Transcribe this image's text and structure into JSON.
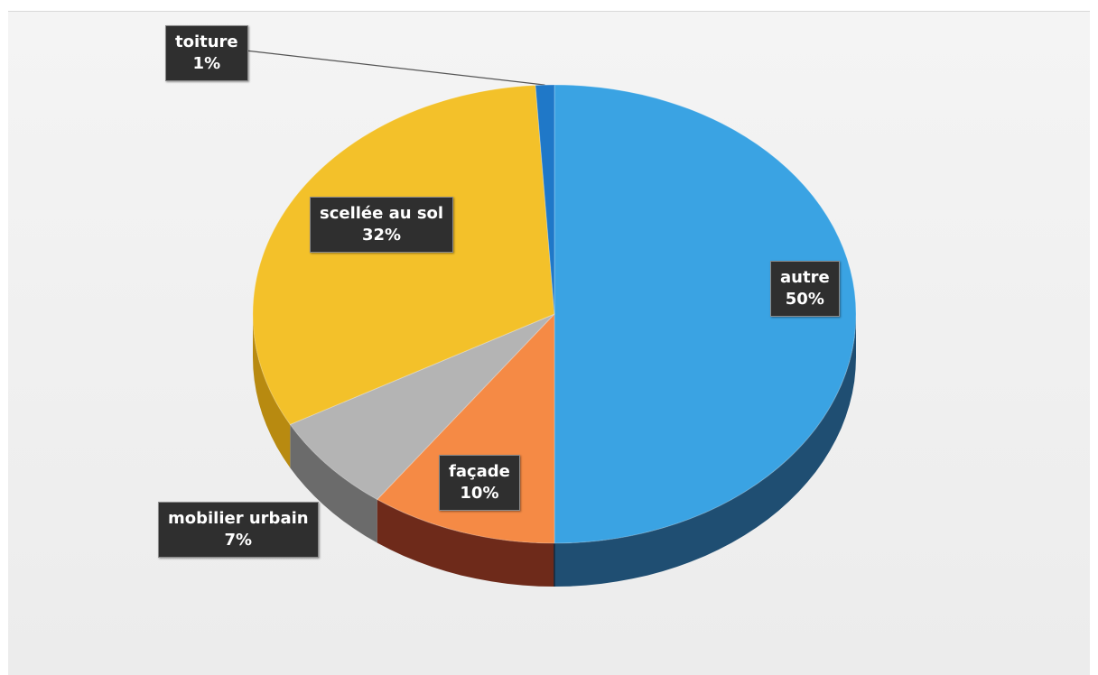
{
  "chart_data": {
    "type": "pie",
    "title": "",
    "slices": [
      {
        "name": "autre",
        "value": 50,
        "label": "50%",
        "color": "#3aa3e3",
        "side_color": "#1f4e72"
      },
      {
        "name": "façade",
        "value": 10,
        "label": "10%",
        "color": "#f58a45",
        "side_color": "#6e2a1a"
      },
      {
        "name": "mobilier urbain",
        "value": 7,
        "label": "7%",
        "color": "#b4b4b4",
        "side_color": "#6b6b6b"
      },
      {
        "name": "scellée au sol",
        "value": 32,
        "label": "32%",
        "color": "#f3c12a",
        "side_color": "#b88a10"
      },
      {
        "name": "toiture",
        "value": 1,
        "label": "1%",
        "color": "#1f78c8",
        "side_color": "#174f82"
      }
    ],
    "legend": "none",
    "data_labels": "category-and-percent"
  }
}
